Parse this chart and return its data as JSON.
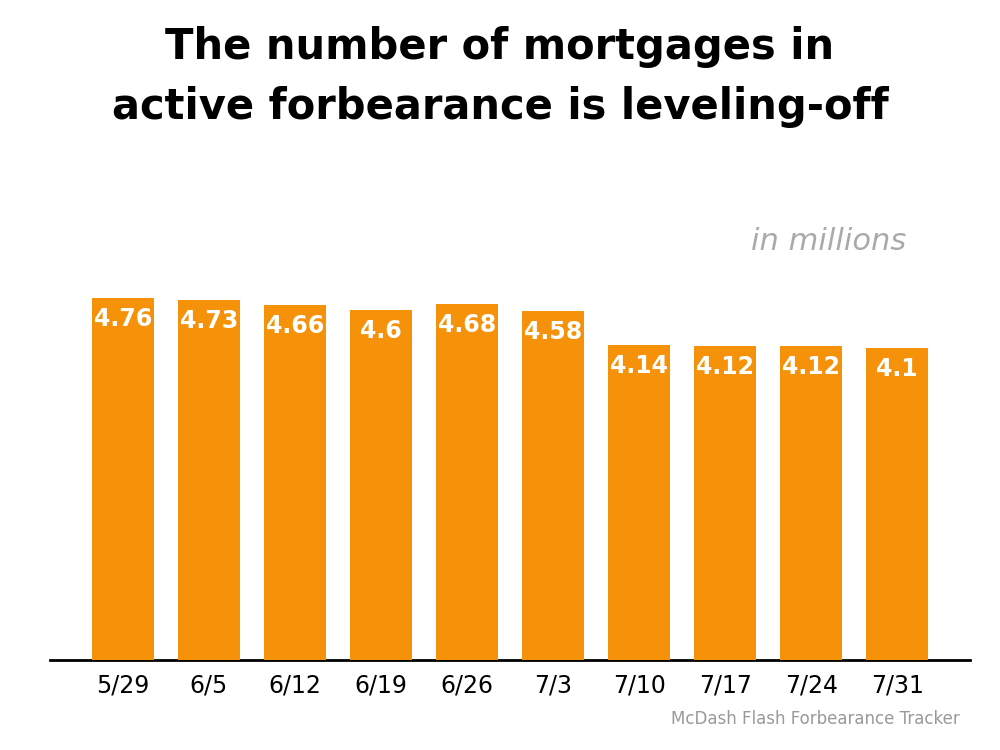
{
  "categories": [
    "5/29",
    "6/5",
    "6/12",
    "6/19",
    "6/26",
    "7/3",
    "7/10",
    "7/17",
    "7/24",
    "7/31"
  ],
  "values": [
    4.76,
    4.73,
    4.66,
    4.6,
    4.68,
    4.58,
    4.14,
    4.12,
    4.12,
    4.1
  ],
  "bar_color": "#F5920A",
  "title_line1": "The number of mortgages in",
  "title_line2": "active forbearance is leveling-off",
  "subtitle": "in millions",
  "source": "McDash Flash Forbearance Tracker",
  "label_color": "#FFFFFF",
  "label_fontsize": 17,
  "title_fontsize": 30,
  "subtitle_fontsize": 22,
  "source_fontsize": 12,
  "xtick_fontsize": 17,
  "background_color": "#FFFFFF",
  "ylim_min": 0,
  "ylim_max": 6.5,
  "bar_width": 0.72
}
